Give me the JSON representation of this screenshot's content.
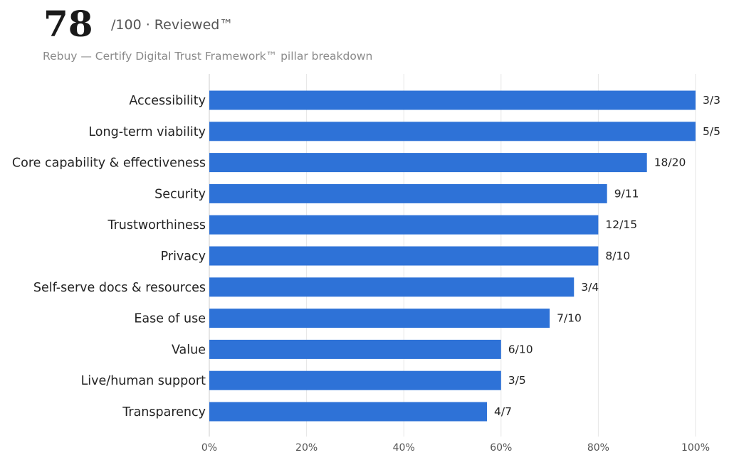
{
  "header": {
    "score": "78",
    "score_suffix": "/100 · Reviewed™",
    "subtitle": "Rebuy — Certify Digital Trust Framework™ pillar breakdown"
  },
  "colors": {
    "bar": "#2e72d7",
    "grid": "#e6e6e6",
    "axis": "#cccccc"
  },
  "chart_data": {
    "type": "bar",
    "orientation": "horizontal",
    "categories": [
      "Accessibility",
      "Long-term viability",
      "Core capability & effectiveness",
      "Security",
      "Trustworthiness",
      "Privacy",
      "Self-serve docs & resources",
      "Ease of use",
      "Value",
      "Live/human support",
      "Transparency"
    ],
    "values": [
      100,
      100,
      90,
      81.8,
      80,
      80,
      75,
      70,
      60,
      60,
      57.1
    ],
    "data_labels": [
      "3/3",
      "5/5",
      "18/20",
      "9/11",
      "12/15",
      "8/10",
      "3/4",
      "7/10",
      "6/10",
      "3/5",
      "4/7"
    ],
    "x_ticks": [
      "0%",
      "20%",
      "40%",
      "60%",
      "80%",
      "100%"
    ],
    "xlim": [
      0,
      100
    ],
    "grid": true
  }
}
